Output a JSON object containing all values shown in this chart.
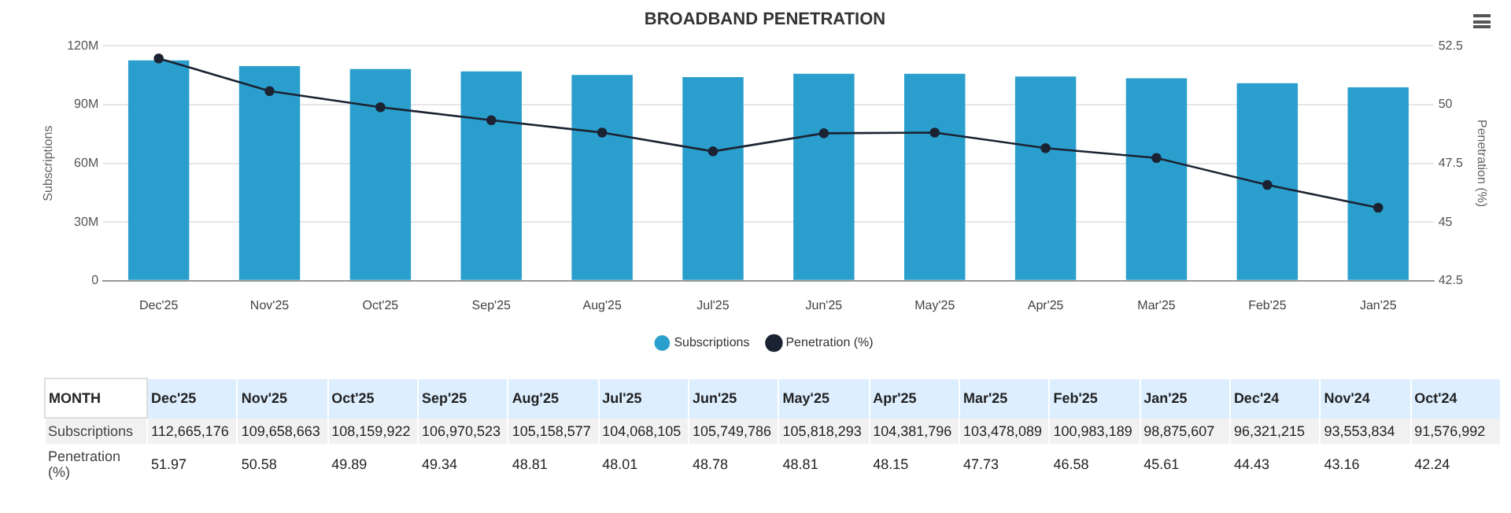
{
  "chart_data": [
    {
      "type": "bar",
      "title": "BROADBAND PENETRATION",
      "ylabel": "Subscriptions",
      "y2label": "Penetration (%)",
      "categories": [
        "Dec'25",
        "Nov'25",
        "Oct'25",
        "Sep'25",
        "Aug'25",
        "Jul'25",
        "Jun'25",
        "May'25",
        "Apr'25",
        "Mar'25",
        "Feb'25",
        "Jan'25"
      ],
      "series": [
        {
          "name": "Subscriptions",
          "type": "bar",
          "color": "#2a9fcd",
          "values": [
            112665176,
            109658663,
            108159922,
            106970523,
            105158577,
            104068105,
            105749786,
            105818293,
            104381796,
            103478089,
            100983189,
            98875607
          ]
        },
        {
          "name": "Penetration (%)",
          "type": "line",
          "axis": "y2",
          "color": "#1b2333",
          "values": [
            51.97,
            50.58,
            49.89,
            49.34,
            48.81,
            48.01,
            48.78,
            48.81,
            48.15,
            47.73,
            46.58,
            45.61
          ]
        }
      ],
      "ylim": [
        0,
        120000000
      ],
      "yticks": [
        0,
        {
          "value": 30000000,
          "label": "30M"
        },
        {
          "value": 60000000,
          "label": "60M"
        },
        {
          "value": 90000000,
          "label": "90M"
        },
        {
          "value": 120000000,
          "label": "120M"
        }
      ],
      "y2lim": [
        42.5,
        52.5
      ],
      "y2ticks": [
        42.5,
        45,
        47.5,
        50,
        52.5
      ],
      "grid": "y",
      "legend": "bottom",
      "marker": "circle",
      "line_style": "solid"
    },
    {
      "type": "other",
      "xlabel": "MONTH",
      "categories": [
        "Dec'25",
        "Nov'25",
        "Oct'25",
        "Sep'25",
        "Aug'25",
        "Jul'25",
        "Jun'25",
        "May'25",
        "Apr'25",
        "Mar'25",
        "Feb'25",
        "Jan'25",
        "Dec'24",
        "Nov'24",
        "Oct'24"
      ],
      "series": [
        {
          "name": "Subscriptions",
          "values": [
            112665176,
            109658663,
            108159922,
            106970523,
            105158577,
            104068105,
            105749786,
            105818293,
            104381796,
            103478089,
            100983189,
            98875607,
            96321215,
            93553834,
            91576992
          ],
          "value_labels": [
            "112,665,176",
            "109,658,663",
            "108,159,922",
            "106,970,523",
            "105,158,577",
            "104,068,105",
            "105,749,786",
            "105,818,293",
            "104,381,796",
            "103,478,089",
            "100,983,189",
            "98,875,607",
            "96,321,215",
            "93,553,834",
            "91,576,992"
          ]
        },
        {
          "name": "Penetration (%)",
          "values": [
            51.97,
            50.58,
            49.89,
            49.34,
            48.81,
            48.01,
            48.78,
            48.81,
            48.15,
            47.73,
            46.58,
            45.61,
            44.43,
            43.16,
            42.24
          ],
          "value_labels": [
            "51.97",
            "50.58",
            "49.89",
            "49.34",
            "48.81",
            "48.01",
            "48.78",
            "48.81",
            "48.15",
            "47.73",
            "46.58",
            "45.61",
            "44.43",
            "43.16",
            "42.24"
          ]
        }
      ]
    }
  ]
}
